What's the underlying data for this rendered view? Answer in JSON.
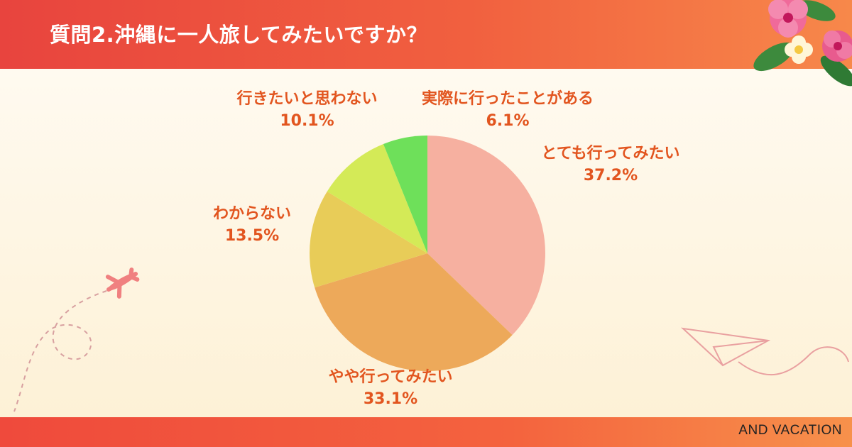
{
  "header": {
    "title": "質問2.沖縄に一人旅してみたいですか？"
  },
  "footer": {
    "brand": "AND VACATION"
  },
  "chart_data": {
    "type": "pie",
    "title": "質問2.沖縄に一人旅してみたいですか？",
    "start_angle_deg": 0,
    "direction": "clockwise",
    "slices": [
      {
        "label": "とても行ってみたい",
        "value": 37.2,
        "display": "37.2%",
        "color": "#f6b0a0"
      },
      {
        "label": "やや行ってみたい",
        "value": 33.1,
        "display": "33.1%",
        "color": "#eda95a"
      },
      {
        "label": "わからない",
        "value": 13.5,
        "display": "13.5%",
        "color": "#e8cc58"
      },
      {
        "label": "行きたいと思わない",
        "value": 10.1,
        "display": "10.1%",
        "color": "#d4ea57"
      },
      {
        "label": "実際に行ったことがある",
        "value": 6.1,
        "display": "6.1%",
        "color": "#6ee05a"
      }
    ]
  },
  "colors": {
    "header": "#ee523f",
    "label_text": "#e2551f",
    "background": "#fdf3dc"
  },
  "decorations": {
    "icons": [
      "hibiscus-flower-icon",
      "airplane-icon",
      "paper-plane-icon"
    ]
  }
}
